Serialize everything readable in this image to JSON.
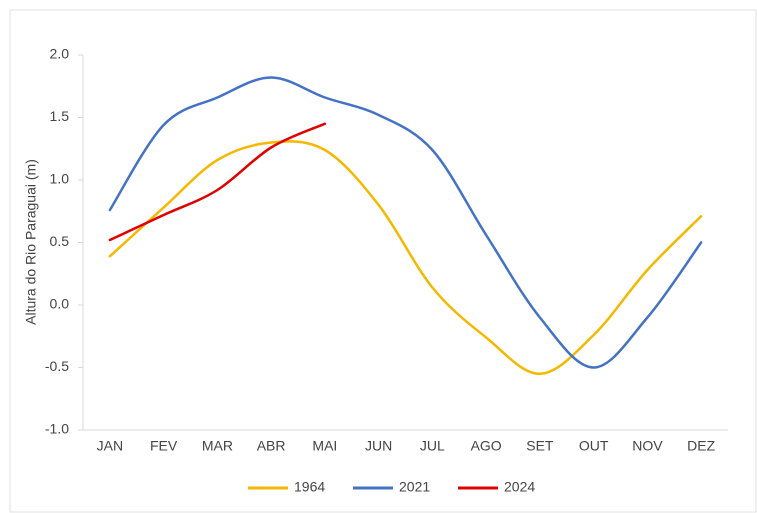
{
  "chart_data": {
    "type": "line",
    "y_label": "Altura do Rio Paraguai (m)",
    "categories": [
      "JAN",
      "FEV",
      "MAR",
      "ABR",
      "MAI",
      "JUN",
      "JUL",
      "AGO",
      "SET",
      "OUT",
      "NOV",
      "DEZ"
    ],
    "series": [
      {
        "name": "1964",
        "color": "#f5b800",
        "values": [
          0.39,
          0.78,
          1.16,
          1.3,
          1.24,
          0.8,
          0.14,
          -0.26,
          -0.55,
          -0.24,
          0.28,
          0.71
        ]
      },
      {
        "name": "2021",
        "color": "#4472c4",
        "values": [
          0.76,
          1.44,
          1.66,
          1.82,
          1.66,
          1.52,
          1.24,
          0.56,
          -0.1,
          -0.5,
          -0.1,
          0.5
        ]
      },
      {
        "name": "2024",
        "color": "#e00000",
        "values": [
          0.52,
          0.72,
          0.92,
          1.26,
          1.45,
          null,
          null,
          null,
          null,
          null,
          null,
          null
        ]
      }
    ],
    "ylim": [
      -1,
      2
    ],
    "yticks": [
      {
        "value": -1,
        "label": "-1.0"
      },
      -0.5,
      {
        "value": 0,
        "label": "0.0"
      },
      0.5,
      {
        "value": 1,
        "label": "1.0"
      },
      1.5,
      {
        "value": 2,
        "label": "2.0"
      }
    ],
    "legend": "bottom"
  }
}
